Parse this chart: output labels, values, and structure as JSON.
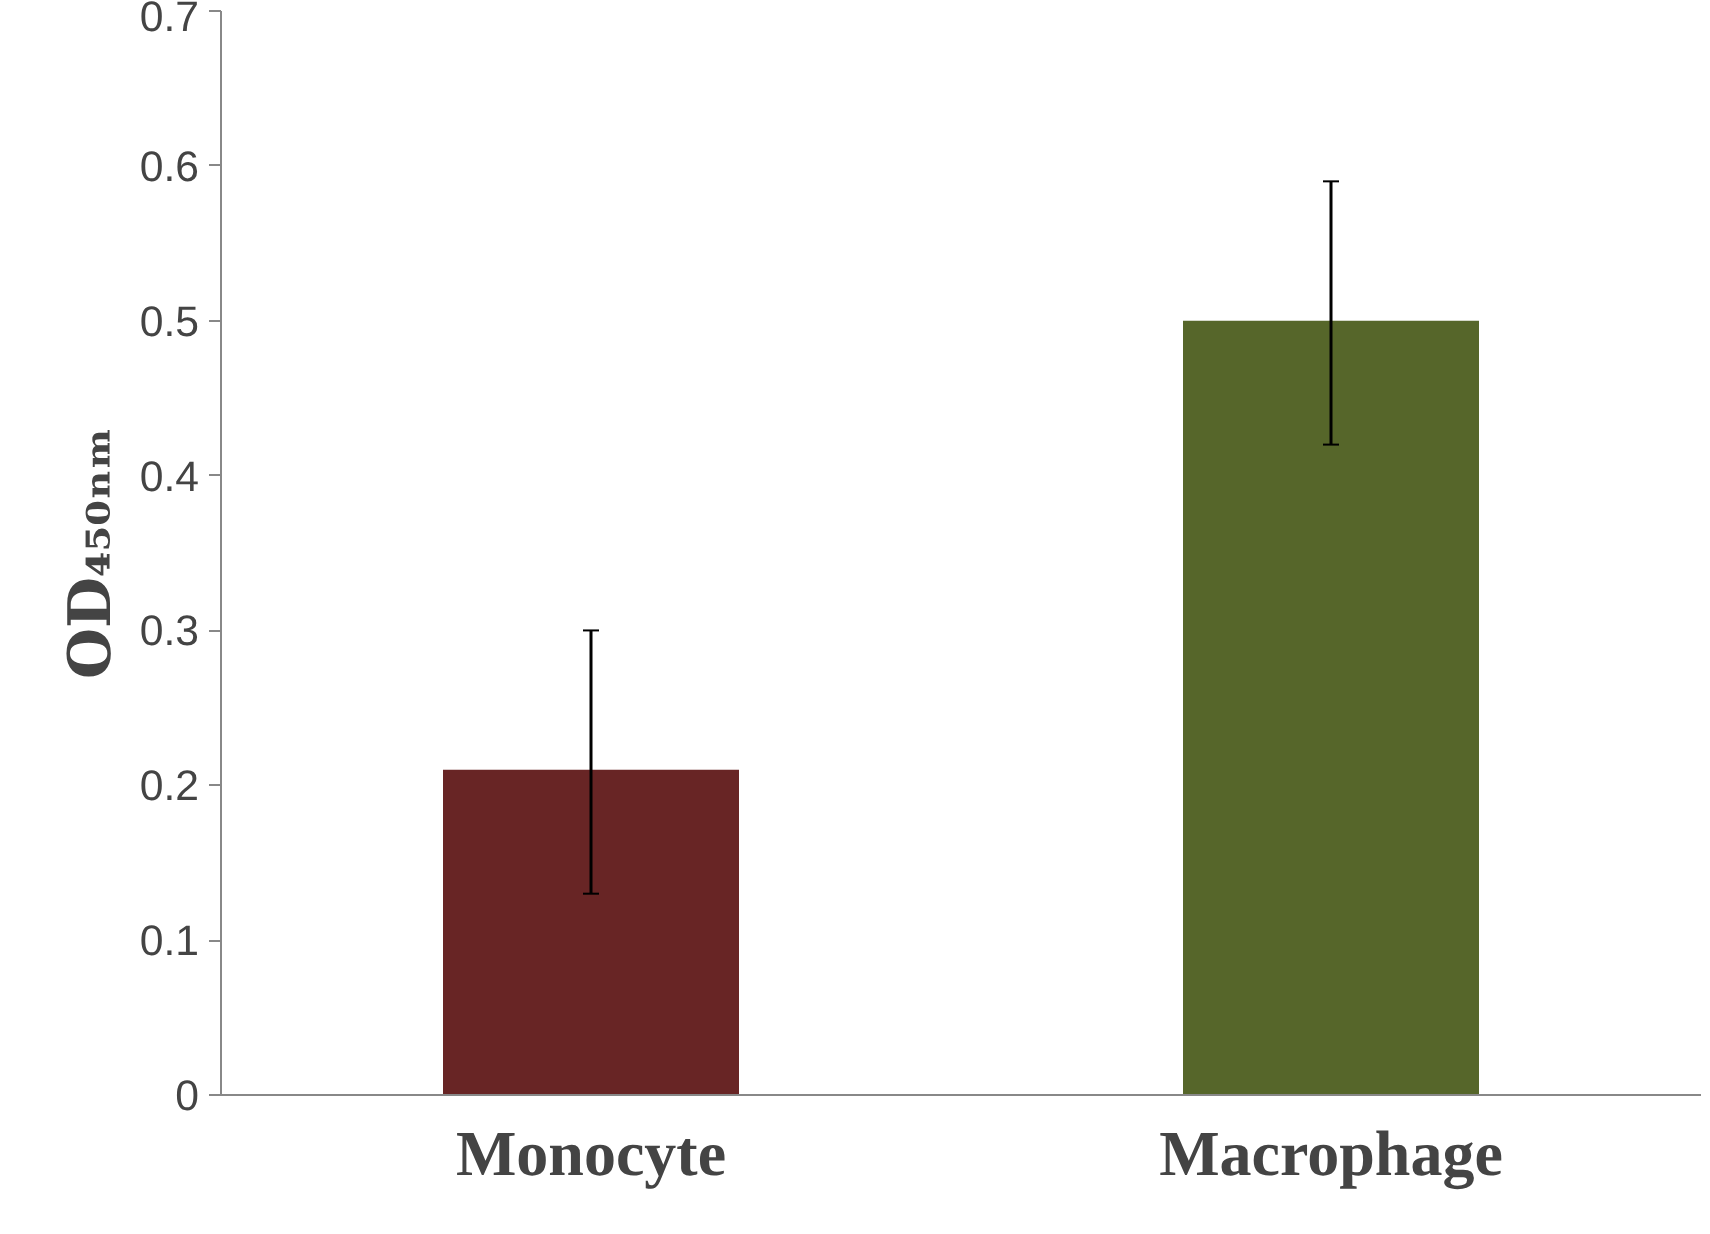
{
  "chart_data": {
    "type": "bar",
    "ylabel": "OD₄₅₀ₙₘ",
    "categories": [
      "Monocyte",
      "Macrophage"
    ],
    "values": [
      0.21,
      0.5
    ],
    "colors": [
      "#682525",
      "#56662a"
    ],
    "errors": [
      [
        0.13,
        0.3
      ],
      [
        0.42,
        0.59
      ]
    ],
    "ylim": [
      0,
      0.7
    ],
    "yticks": [
      0,
      0.1,
      0.2,
      0.3,
      0.4,
      0.5,
      0.6,
      0.7
    ],
    "grid": false
  }
}
